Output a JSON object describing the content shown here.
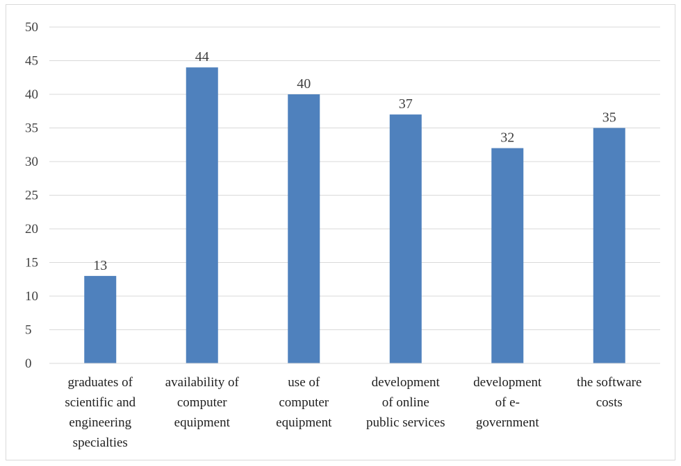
{
  "chart_data": {
    "type": "bar",
    "title": "",
    "xlabel": "",
    "ylabel": "",
    "categories": [
      [
        "graduates of",
        "scientific and",
        "engineering",
        "specialties"
      ],
      [
        "availability of",
        "computer",
        "equipment"
      ],
      [
        "use of",
        "computer",
        "equipment"
      ],
      [
        "development",
        "of online",
        "public services"
      ],
      [
        "development",
        "of e-",
        "government"
      ],
      [
        "the software",
        "costs"
      ]
    ],
    "values": [
      13,
      44,
      40,
      37,
      32,
      35
    ],
    "data_labels": [
      "13",
      "44",
      "40",
      "37",
      "32",
      "35"
    ],
    "ylim": [
      0,
      50
    ],
    "yticks": [
      "0",
      "5",
      "10",
      "15",
      "20",
      "25",
      "30",
      "35",
      "40",
      "45",
      "50"
    ],
    "grid": true,
    "legend": "none",
    "bar_color": "#4f81bd",
    "grid_color": "#d9d9d9"
  }
}
